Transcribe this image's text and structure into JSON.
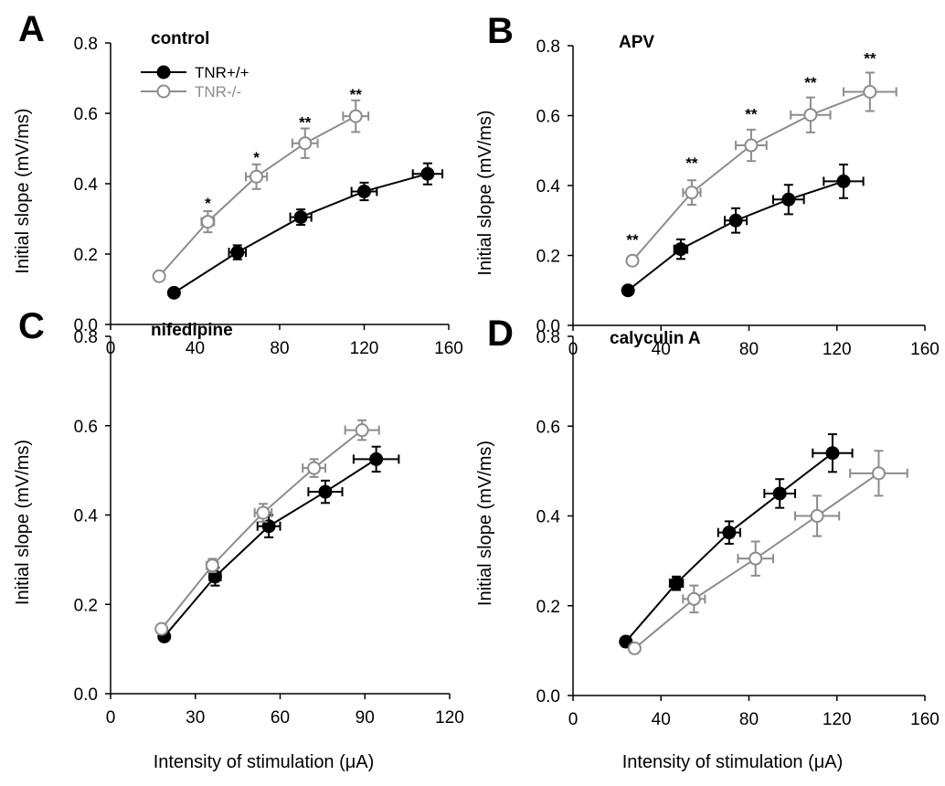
{
  "figure": {
    "xlabel": "Intensity of stimulation (μA)",
    "ylabel": "Initial slope (mV/ms)",
    "legend": [
      {
        "label": "TNR+/+",
        "color": "#000000",
        "marker": "filled-circle"
      },
      {
        "label": "TNR-/-",
        "color": "#8c8c8c",
        "marker": "open-circle"
      }
    ]
  },
  "chart_data": [
    {
      "panel": "A",
      "title": "control",
      "type": "scatter",
      "xlabel": "Intensity of stimulation (μA)",
      "ylabel": "Initial slope (mV/ms)",
      "xlim": [
        0,
        160
      ],
      "xticks": [
        0,
        40,
        80,
        120,
        160
      ],
      "ylim": [
        0,
        0.8
      ],
      "yticks": [
        "0.0",
        "0.2",
        "0.4",
        "0.6",
        "0.8"
      ],
      "legend_position": "top-left",
      "series": [
        {
          "name": "TNR+/+",
          "color": "#000000",
          "filled": true,
          "x": [
            30,
            60,
            90,
            120,
            150
          ],
          "y": [
            0.09,
            0.205,
            0.305,
            0.378,
            0.428
          ],
          "x_err": [
            0,
            4,
            5,
            6,
            7
          ],
          "y_err": [
            0,
            0.02,
            0.022,
            0.025,
            0.03
          ]
        },
        {
          "name": "TNR-/-",
          "color": "#8c8c8c",
          "filled": false,
          "x": [
            23,
            46,
            69,
            92,
            116
          ],
          "y": [
            0.137,
            0.292,
            0.42,
            0.515,
            0.592
          ],
          "x_err": [
            0,
            3,
            5,
            6,
            6
          ],
          "y_err": [
            0,
            0.03,
            0.035,
            0.042,
            0.045
          ]
        }
      ],
      "annotations": [
        {
          "text": "*",
          "x": 46,
          "y": 0.34
        },
        {
          "text": "*",
          "x": 69,
          "y": 0.47
        },
        {
          "text": "**",
          "x": 92,
          "y": 0.57
        },
        {
          "text": "**",
          "x": 116,
          "y": 0.65
        }
      ]
    },
    {
      "panel": "B",
      "title": "APV",
      "type": "scatter",
      "xlabel": "Intensity of stimulation (μA)",
      "ylabel": "Initial slope (mV/ms)",
      "xlim": [
        0,
        160
      ],
      "xticks": [
        0,
        40,
        80,
        120,
        160
      ],
      "ylim": [
        0,
        0.8
      ],
      "yticks": [
        "0.0",
        "0.2",
        "0.4",
        "0.6",
        "0.8"
      ],
      "series": [
        {
          "name": "TNR+/+",
          "color": "#000000",
          "filled": true,
          "x": [
            25,
            49,
            74,
            98,
            123
          ],
          "y": [
            0.1,
            0.218,
            0.3,
            0.36,
            0.412
          ],
          "x_err": [
            0,
            3,
            5,
            7,
            9
          ],
          "y_err": [
            0,
            0.028,
            0.035,
            0.042,
            0.048
          ]
        },
        {
          "name": "TNR-/-",
          "color": "#8c8c8c",
          "filled": false,
          "x": [
            27,
            54,
            81,
            108,
            135
          ],
          "y": [
            0.185,
            0.38,
            0.515,
            0.602,
            0.668
          ],
          "x_err": [
            0,
            4,
            7,
            9,
            12
          ],
          "y_err": [
            0,
            0.035,
            0.045,
            0.05,
            0.055
          ]
        }
      ],
      "annotations": [
        {
          "text": "**",
          "x": 27,
          "y": 0.24
        },
        {
          "text": "**",
          "x": 54,
          "y": 0.46
        },
        {
          "text": "**",
          "x": 81,
          "y": 0.6
        },
        {
          "text": "**",
          "x": 108,
          "y": 0.69
        },
        {
          "text": "**",
          "x": 135,
          "y": 0.76
        }
      ]
    },
    {
      "panel": "C",
      "title": "nifedipine",
      "type": "scatter",
      "xlabel": "Intensity of stimulation (μA)",
      "ylabel": "Initial slope (mV/ms)",
      "xlim": [
        0,
        120
      ],
      "xticks": [
        0,
        30,
        60,
        90,
        120
      ],
      "ylim": [
        0,
        0.8
      ],
      "yticks": [
        "0.0",
        "0.2",
        "0.4",
        "0.6",
        "0.8"
      ],
      "series": [
        {
          "name": "TNR+/+",
          "color": "#000000",
          "filled": true,
          "x": [
            19,
            37,
            56,
            76,
            94
          ],
          "y": [
            0.128,
            0.262,
            0.375,
            0.452,
            0.525
          ],
          "x_err": [
            0,
            2,
            4,
            6,
            8
          ],
          "y_err": [
            0,
            0.02,
            0.025,
            0.025,
            0.028
          ]
        },
        {
          "name": "TNR-/-",
          "color": "#8c8c8c",
          "filled": false,
          "x": [
            18,
            36,
            54,
            72,
            89
          ],
          "y": [
            0.145,
            0.287,
            0.405,
            0.505,
            0.59
          ],
          "x_err": [
            0,
            2,
            3,
            4,
            6
          ],
          "y_err": [
            0,
            0.015,
            0.02,
            0.02,
            0.022
          ]
        }
      ]
    },
    {
      "panel": "D",
      "title": "calyculin A",
      "type": "scatter",
      "xlabel": "Intensity of stimulation (μA)",
      "ylabel": "Initial slope (mV/ms)",
      "xlim": [
        0,
        160
      ],
      "xticks": [
        0,
        40,
        80,
        120,
        160
      ],
      "ylim": [
        0,
        0.8
      ],
      "yticks": [
        "0.0",
        "0.2",
        "0.4",
        "0.6",
        "0.8"
      ],
      "series": [
        {
          "name": "TNR+/+",
          "color": "#000000",
          "filled": true,
          "x": [
            24,
            47,
            71,
            94,
            118
          ],
          "y": [
            0.12,
            0.25,
            0.363,
            0.45,
            0.54
          ],
          "x_err": [
            0,
            3,
            5,
            7,
            9
          ],
          "y_err": [
            0,
            0.015,
            0.025,
            0.032,
            0.042
          ]
        },
        {
          "name": "TNR-/-",
          "color": "#8c8c8c",
          "filled": false,
          "x": [
            28,
            55,
            83,
            111,
            139
          ],
          "y": [
            0.105,
            0.215,
            0.305,
            0.4,
            0.495
          ],
          "x_err": [
            0,
            5,
            8,
            10,
            13
          ],
          "y_err": [
            0,
            0.03,
            0.038,
            0.045,
            0.05
          ]
        }
      ]
    }
  ]
}
